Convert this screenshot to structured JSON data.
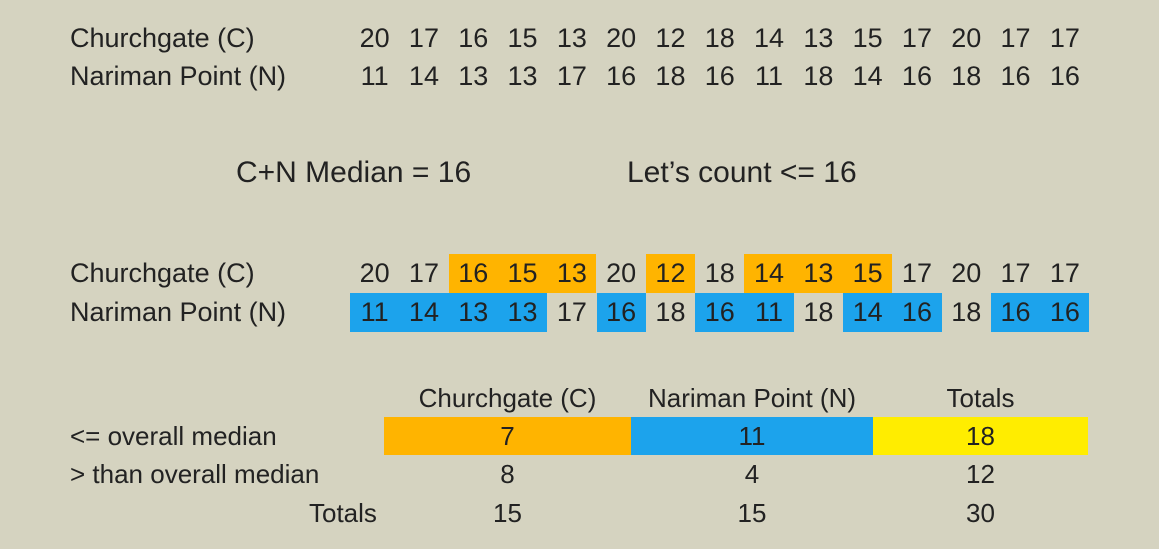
{
  "top": {
    "churchgate_label": "Churchgate (C)",
    "nariman_label": "Nariman Point (N)",
    "churchgate_values": [
      "20",
      "17",
      "16",
      "15",
      "13",
      "20",
      "12",
      "18",
      "14",
      "13",
      "15",
      "17",
      "20",
      "17",
      "17"
    ],
    "nariman_values": [
      "11",
      "14",
      "13",
      "13",
      "17",
      "16",
      "18",
      "16",
      "11",
      "18",
      "14",
      "16",
      "18",
      "16",
      "16"
    ]
  },
  "middle": {
    "median_text": "C+N Median = 16",
    "count_text": "Let’s count <= 16"
  },
  "highlighted": {
    "churchgate_label": "Churchgate (C)",
    "nariman_label": "Nariman Point (N)",
    "churchgate_values": [
      "20",
      "17",
      "16",
      "15",
      "13",
      "20",
      "12",
      "18",
      "14",
      "13",
      "15",
      "17",
      "20",
      "17",
      "17"
    ],
    "nariman_values": [
      "11",
      "14",
      "13",
      "13",
      "17",
      "16",
      "18",
      "16",
      "11",
      "18",
      "14",
      "16",
      "18",
      "16",
      "16"
    ],
    "churchgate_highlight_color": "#ffb400",
    "nariman_highlight_color": "#1ca3ec"
  },
  "table": {
    "headers": [
      "Churchgate (C)",
      "Nariman Point (N)",
      "Totals"
    ],
    "rows": [
      {
        "label": "<= overall median",
        "values": [
          "7",
          "11",
          "18"
        ]
      },
      {
        "label": "> than overall median",
        "values": [
          "8",
          "4",
          "12"
        ]
      },
      {
        "label": "Totals",
        "values": [
          "15",
          "15",
          "30"
        ]
      }
    ],
    "colors": {
      "churchgate": "#ffb400",
      "nariman": "#1ca3ec",
      "totals": "#ffed00"
    }
  }
}
